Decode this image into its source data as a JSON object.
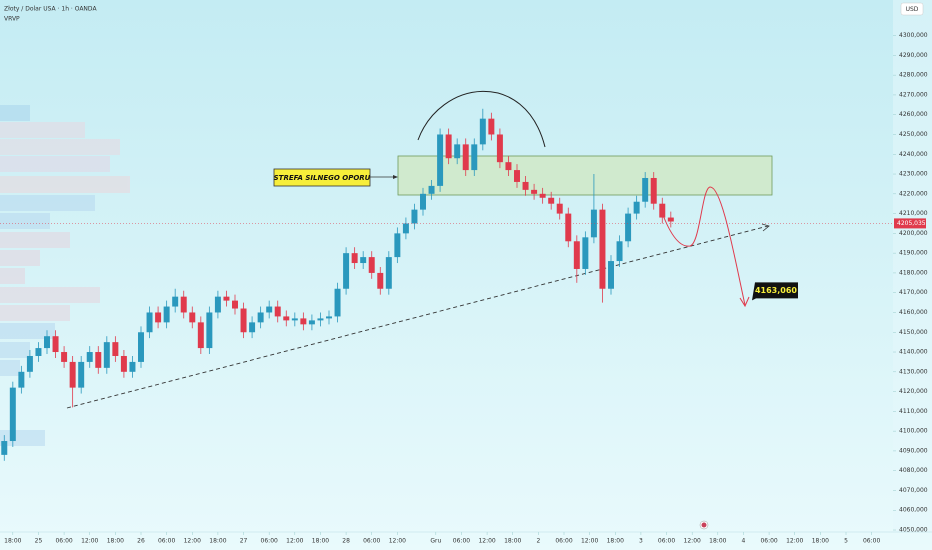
{
  "chart_data": {
    "type": "candlestick",
    "title": "Złoty / Dolar USA · 1h · OANDA",
    "indicator": "VRVP",
    "currency": "USD",
    "up_color": "#2a98bd",
    "down_color": "#e03a4c",
    "x": [
      -2,
      0,
      2,
      4,
      6,
      8,
      10,
      12,
      14,
      16,
      18,
      20,
      22,
      24,
      26,
      28,
      30,
      32,
      34,
      36,
      38,
      40,
      42,
      44,
      46,
      48,
      50,
      52,
      54,
      56,
      58,
      60,
      62,
      64,
      66,
      68,
      70,
      72,
      74,
      76,
      78,
      80,
      82,
      84,
      86,
      88,
      90,
      92,
      94,
      96,
      98,
      100,
      102,
      104,
      106,
      108,
      110,
      112,
      114,
      116,
      118,
      120,
      122,
      124,
      126,
      128,
      130,
      132,
      134,
      136,
      138,
      140,
      142,
      144,
      146,
      148,
      150,
      152,
      154
    ],
    "open": [
      4088,
      4095,
      4122,
      4130,
      4138,
      4142,
      4148,
      4140,
      4135,
      4122,
      4135,
      4140,
      4132,
      4145,
      4138,
      4130,
      4135,
      4150,
      4160,
      4155,
      4163,
      4168,
      4160,
      4155,
      4142,
      4160,
      4168,
      4166,
      4162,
      4150,
      4155,
      4160,
      4163,
      4158,
      4156,
      4157,
      4154,
      4156,
      4157,
      4158,
      4172,
      4190,
      4185,
      4188,
      4180,
      4172,
      4188,
      4200,
      4205,
      4212,
      4220,
      4224,
      4250,
      4238,
      4245,
      4232,
      4245,
      4258,
      4250,
      4236,
      4232,
      4226,
      4222,
      4220,
      4218,
      4215,
      4210,
      4196,
      4182,
      4198,
      4212,
      4172,
      4186,
      4196,
      4210,
      4216,
      4228,
      4215,
      4208
    ],
    "high": [
      4098,
      4125,
      4133,
      4141,
      4145,
      4151,
      4151,
      4143,
      4138,
      4138,
      4143,
      4143,
      4148,
      4148,
      4141,
      4138,
      4153,
      4163,
      4163,
      4166,
      4172,
      4171,
      4163,
      4158,
      4163,
      4171,
      4171,
      4169,
      4165,
      4158,
      4163,
      4166,
      4166,
      4161,
      4160,
      4160,
      4159,
      4160,
      4161,
      4175,
      4193,
      4193,
      4191,
      4191,
      4183,
      4191,
      4203,
      4208,
      4215,
      4223,
      4227,
      4253,
      4253,
      4248,
      4248,
      4248,
      4263,
      4261,
      4253,
      4239,
      4235,
      4229,
      4225,
      4223,
      4221,
      4218,
      4213,
      4199,
      4201,
      4230,
      4215,
      4189,
      4199,
      4213,
      4219,
      4231,
      4231,
      4218,
      4211
    ],
    "low": [
      4085,
      4092,
      4119,
      4127,
      4135,
      4139,
      4137,
      4132,
      4112,
      4119,
      4132,
      4129,
      4129,
      4135,
      4127,
      4127,
      4132,
      4147,
      4152,
      4152,
      4160,
      4157,
      4152,
      4139,
      4139,
      4157,
      4163,
      4159,
      4147,
      4147,
      4152,
      4157,
      4155,
      4153,
      4153,
      4151,
      4151,
      4153,
      4154,
      4155,
      4169,
      4182,
      4182,
      4177,
      4169,
      4169,
      4185,
      4197,
      4202,
      4209,
      4217,
      4221,
      4235,
      4235,
      4229,
      4229,
      4242,
      4247,
      4233,
      4229,
      4223,
      4219,
      4217,
      4215,
      4212,
      4207,
      4193,
      4175,
      4179,
      4195,
      4165,
      4169,
      4183,
      4193,
      4207,
      4213,
      4212,
      4205,
      4203
    ],
    "close": [
      4095,
      4122,
      4130,
      4138,
      4142,
      4148,
      4140,
      4135,
      4122,
      4135,
      4140,
      4132,
      4145,
      4138,
      4130,
      4135,
      4150,
      4160,
      4155,
      4163,
      4168,
      4160,
      4155,
      4142,
      4160,
      4168,
      4166,
      4162,
      4150,
      4155,
      4160,
      4163,
      4158,
      4156,
      4157,
      4154,
      4156,
      4157,
      4158,
      4172,
      4190,
      4185,
      4188,
      4180,
      4172,
      4188,
      4200,
      4205,
      4212,
      4220,
      4224,
      4250,
      4238,
      4245,
      4232,
      4245,
      4258,
      4250,
      4236,
      4232,
      4226,
      4222,
      4220,
      4218,
      4215,
      4210,
      4196,
      4182,
      4198,
      4212,
      4172,
      4186,
      4196,
      4210,
      4216,
      4228,
      4215,
      4208,
      4206
    ],
    "xlim": [
      -3,
      206
    ],
    "xticks": [
      {
        "value": 0,
        "label": "18:00"
      },
      {
        "value": 6,
        "label": "25"
      },
      {
        "value": 12,
        "label": "06:00"
      },
      {
        "value": 18,
        "label": "12:00"
      },
      {
        "value": 24,
        "label": "18:00"
      },
      {
        "value": 30,
        "label": "26"
      },
      {
        "value": 36,
        "label": "06:00"
      },
      {
        "value": 42,
        "label": "12:00"
      },
      {
        "value": 48,
        "label": "18:00"
      },
      {
        "value": 54,
        "label": "27"
      },
      {
        "value": 60,
        "label": "06:00"
      },
      {
        "value": 66,
        "label": "12:00"
      },
      {
        "value": 72,
        "label": "18:00"
      },
      {
        "value": 78,
        "label": "28"
      },
      {
        "value": 84,
        "label": "06:00"
      },
      {
        "value": 90,
        "label": "12:00"
      },
      {
        "value": 99,
        "label": "Gru"
      },
      {
        "value": 105,
        "label": "06:00"
      },
      {
        "value": 111,
        "label": "12:00"
      },
      {
        "value": 117,
        "label": "18:00"
      },
      {
        "value": 123,
        "label": "2"
      },
      {
        "value": 129,
        "label": "06:00"
      },
      {
        "value": 135,
        "label": "12:00"
      },
      {
        "value": 141,
        "label": "18:00"
      },
      {
        "value": 147,
        "label": "3"
      },
      {
        "value": 153,
        "label": "06:00"
      },
      {
        "value": 159,
        "label": "12:00"
      },
      {
        "value": 165,
        "label": "18:00"
      },
      {
        "value": 171,
        "label": "4"
      },
      {
        "value": 177,
        "label": "06:00"
      },
      {
        "value": 183,
        "label": "12:00"
      },
      {
        "value": 189,
        "label": "18:00"
      },
      {
        "value": 195,
        "label": "5"
      },
      {
        "value": 201,
        "label": "06:00"
      }
    ],
    "ylim": [
      4049,
      4318
    ],
    "yticks": [
      {
        "value": 4050,
        "label": "4050,000"
      },
      {
        "value": 4060,
        "label": "4060,000"
      },
      {
        "value": 4070,
        "label": "4070,000"
      },
      {
        "value": 4080,
        "label": "4080,000"
      },
      {
        "value": 4090,
        "label": "4090,000"
      },
      {
        "value": 4100,
        "label": "4100,000"
      },
      {
        "value": 4110,
        "label": "4110,000"
      },
      {
        "value": 4120,
        "label": "4120,000"
      },
      {
        "value": 4130,
        "label": "4130,000"
      },
      {
        "value": 4140,
        "label": "4140,000"
      },
      {
        "value": 4150,
        "label": "4150,000"
      },
      {
        "value": 4160,
        "label": "4160,000"
      },
      {
        "value": 4170,
        "label": "4170,000"
      },
      {
        "value": 4180,
        "label": "4180,000"
      },
      {
        "value": 4190,
        "label": "4190,000"
      },
      {
        "value": 4200,
        "label": "4200,000"
      },
      {
        "value": 4210,
        "label": "4210,000"
      },
      {
        "value": 4220,
        "label": "4220,000"
      },
      {
        "value": 4230,
        "label": "4230,000"
      },
      {
        "value": 4240,
        "label": "4240,000"
      },
      {
        "value": 4250,
        "label": "4250,000"
      },
      {
        "value": 4260,
        "label": "4260,000"
      },
      {
        "value": 4270,
        "label": "4270,000"
      },
      {
        "value": 4280,
        "label": "4280,000"
      },
      {
        "value": 4290,
        "label": "4290,000"
      },
      {
        "value": 4300,
        "label": "4300,000"
      }
    ],
    "last_price": {
      "value": 4205.035,
      "label": "4205,035"
    },
    "zone_label": "STREFA SILNEGO OPORU",
    "target": {
      "value": 4163.06,
      "label": "4163,060"
    }
  }
}
